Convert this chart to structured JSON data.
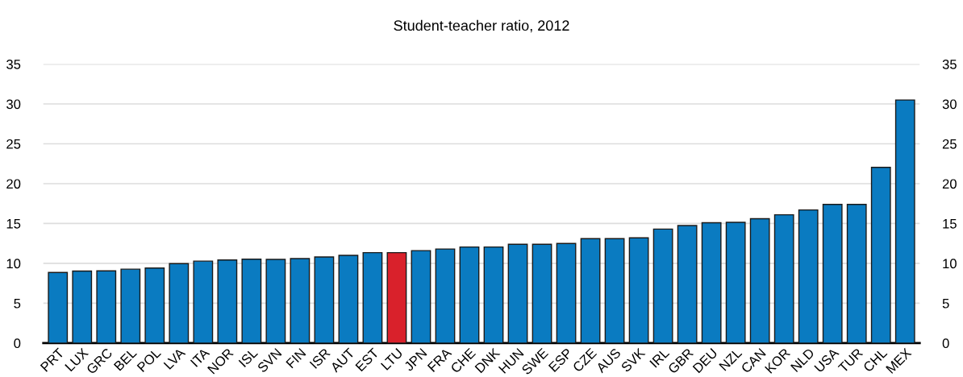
{
  "chart_data": {
    "type": "bar",
    "title": "Student-teacher ratio, 2012",
    "categories": [
      "PRT",
      "LUX",
      "GRC",
      "BEL",
      "POL",
      "LVA",
      "ITA",
      "NOR",
      "ISL",
      "SVN",
      "FIN",
      "ISR",
      "AUT",
      "EST",
      "LTU",
      "JPN",
      "FRA",
      "CHE",
      "DNK",
      "HUN",
      "SWE",
      "ESP",
      "CZE",
      "AUS",
      "SVK",
      "IRL",
      "GBR",
      "DEU",
      "NZL",
      "CAN",
      "KOR",
      "NLD",
      "USA",
      "TUR",
      "CHL",
      "MEX"
    ],
    "values": [
      8.85,
      9.03,
      9.06,
      9.27,
      9.41,
      9.97,
      10.28,
      10.42,
      10.52,
      10.5,
      10.6,
      10.8,
      11.0,
      11.35,
      11.35,
      11.6,
      11.8,
      12.05,
      12.05,
      12.4,
      12.4,
      12.5,
      13.1,
      13.1,
      13.2,
      14.3,
      14.75,
      15.1,
      15.15,
      15.6,
      16.1,
      16.7,
      17.4,
      17.4,
      22.05,
      30.5
    ],
    "colors": [
      "#0a7bc1",
      "#0a7bc1",
      "#0a7bc1",
      "#0a7bc1",
      "#0a7bc1",
      "#0a7bc1",
      "#0a7bc1",
      "#0a7bc1",
      "#0a7bc1",
      "#0a7bc1",
      "#0a7bc1",
      "#0a7bc1",
      "#0a7bc1",
      "#0a7bc1",
      "#d9212b",
      "#0a7bc1",
      "#0a7bc1",
      "#0a7bc1",
      "#0a7bc1",
      "#0a7bc1",
      "#0a7bc1",
      "#0a7bc1",
      "#0a7bc1",
      "#0a7bc1",
      "#0a7bc1",
      "#0a7bc1",
      "#0a7bc1",
      "#0a7bc1",
      "#0a7bc1",
      "#0a7bc1",
      "#0a7bc1",
      "#0a7bc1",
      "#0a7bc1",
      "#0a7bc1",
      "#0a7bc1",
      "#0a7bc1"
    ],
    "ylim": [
      0,
      35
    ],
    "yticks": [
      0,
      5,
      10,
      15,
      20,
      25,
      30,
      35
    ],
    "y2lim": [
      0,
      35
    ],
    "y2ticks": [
      0,
      5,
      10,
      15,
      20,
      25,
      30,
      35
    ],
    "grid": "y"
  }
}
